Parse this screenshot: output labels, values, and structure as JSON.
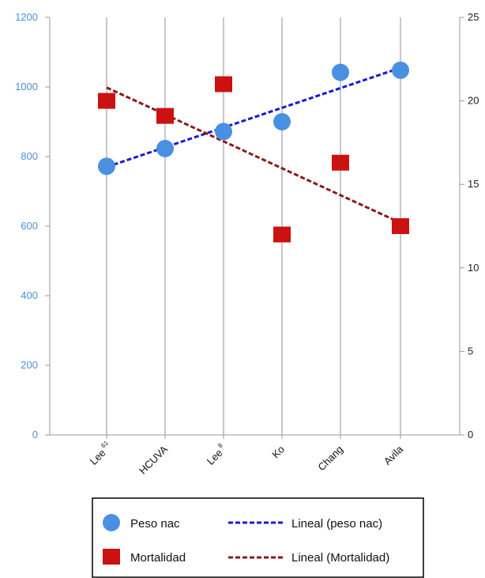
{
  "chart_data": {
    "type": "line",
    "categories": [
      "Lee",
      "HCUVA",
      "Lee",
      "Ko",
      "Chang",
      "Avila"
    ],
    "category_superscripts": [
      "61",
      "",
      "8",
      "",
      "",
      ""
    ],
    "y_left": {
      "range": [
        0,
        1200
      ],
      "ticks": [
        0,
        200,
        400,
        600,
        800,
        1000,
        1200
      ],
      "color": "#4a90d9"
    },
    "y_right": {
      "range": [
        0,
        25
      ],
      "ticks": [
        0,
        5,
        10,
        15,
        20,
        25
      ]
    },
    "grid": "vertical",
    "legend_position": "bottom",
    "series": [
      {
        "name": "Peso nac",
        "marker": "circle",
        "axis": "left",
        "color": "#4a90e2",
        "values": [
          772,
          823,
          872,
          900,
          1042,
          1048
        ]
      },
      {
        "name": "Mortalidad",
        "marker": "square",
        "axis": "right",
        "color": "#cc1111",
        "values": [
          20.0,
          19.1,
          21.0,
          12.0,
          16.3,
          12.5
        ]
      }
    ],
    "trendlines": [
      {
        "name": "Lineal (peso nac)",
        "of": "Peso nac",
        "color": "#1a1ad1",
        "values": [
          770,
          1055
        ]
      },
      {
        "name": "Lineal (Mortalidad)",
        "of": "Mortalidad",
        "color": "#8b1a1a",
        "values": [
          20.8,
          12.7
        ]
      }
    ]
  }
}
